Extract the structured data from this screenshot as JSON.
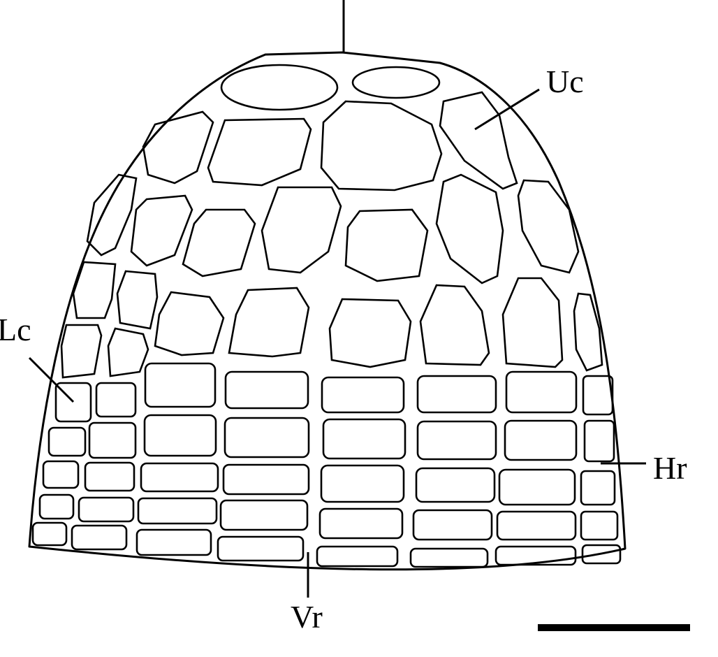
{
  "labels": {
    "uc": "Uc",
    "lc": "Lc",
    "hr": "Hr",
    "vr": "Vr"
  },
  "colors": {
    "ink": "#000000",
    "paper": "#ffffff"
  }
}
